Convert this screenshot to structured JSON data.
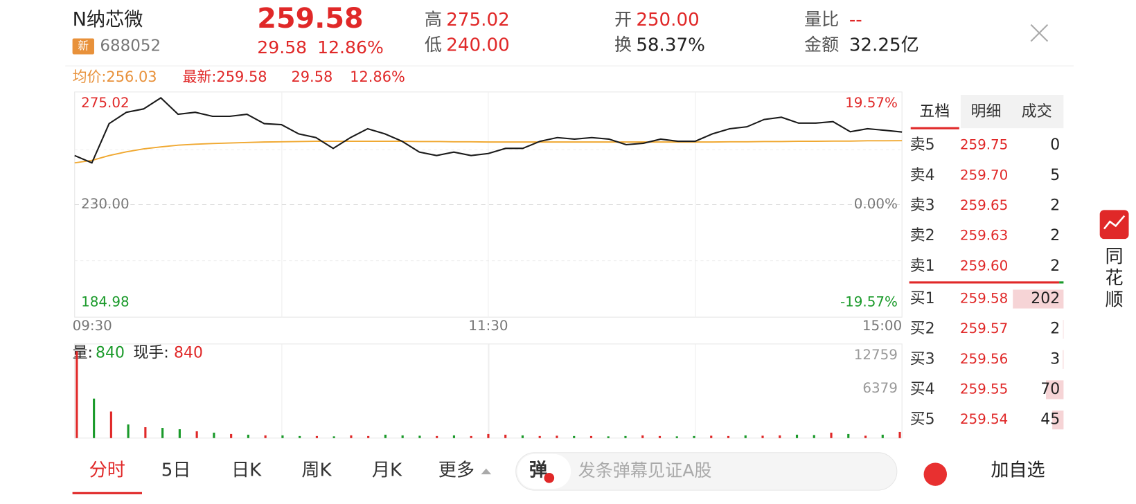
{
  "header": {
    "name": "N纳芯微",
    "tag": "新",
    "code": "688052",
    "price": "259.58",
    "change": "29.58",
    "change_pct": "12.86%",
    "high_label": "高",
    "high": "275.02",
    "low_label": "低",
    "low": "240.00",
    "open_label": "开",
    "open": "250.00",
    "turnover_label": "换",
    "turnover": "58.37%",
    "ratio_label": "量比",
    "ratio": "--",
    "amount_label": "金额",
    "amount": "32.25亿"
  },
  "info_bar": {
    "avg": "均价:256.03",
    "latest": "最新:259.58",
    "change": "29.58",
    "pct": "12.86%"
  },
  "volume_info": {
    "label": "量:",
    "value": "840",
    "hand_label": "现手:",
    "hand_value": "840"
  },
  "chart_data": [
    {
      "type": "line",
      "x": [
        0,
        5,
        10,
        15,
        20,
        25,
        30,
        35,
        40,
        45,
        50,
        55,
        60,
        65,
        70,
        75,
        80,
        85,
        90,
        95,
        100,
        105,
        110,
        115,
        120,
        125,
        130,
        135,
        140,
        145,
        150,
        155,
        160,
        165,
        170,
        175,
        180,
        185,
        190,
        195,
        200,
        205,
        210,
        215,
        220,
        225,
        230,
        235,
        240
      ],
      "xlim": [
        0,
        240
      ],
      "xticks": [
        {
          "value": 0,
          "label": "09:30"
        },
        {
          "value": 120,
          "label": "11:30"
        },
        {
          "value": 240,
          "label": "15:00"
        }
      ],
      "ylim": [
        184.98,
        275.02
      ],
      "yticks": [
        275.02,
        {
          "value": 230,
          "label": "230.00"
        },
        184.98
      ],
      "y2lim": [
        -19.57,
        19.57
      ],
      "y2ticks": [
        {
          "value": 19.57,
          "label": "19.57%"
        },
        {
          "value": 0,
          "label": "0.00%"
        },
        {
          "value": -19.57,
          "label": "-19.57%"
        }
      ],
      "grid": true,
      "series": [
        {
          "color": "#1a1a1a",
          "values": [
            250.0,
            247.0,
            263.0,
            267.6,
            269.0,
            273.5,
            266.8,
            267.6,
            266.0,
            266.0,
            266.8,
            263.0,
            262.6,
            258.8,
            257.3,
            252.9,
            257.3,
            260.9,
            258.8,
            255.8,
            251.4,
            250.0,
            251.4,
            250.0,
            250.8,
            252.9,
            252.9,
            255.8,
            257.3,
            256.7,
            257.3,
            256.7,
            254.4,
            255.0,
            256.7,
            255.8,
            255.8,
            258.8,
            260.9,
            261.7,
            264.7,
            265.6,
            263.2,
            263.2,
            263.8,
            259.7,
            260.9,
            260.3,
            259.58
          ]
        },
        {
          "color": "#f0a830",
          "values": [
            247.0,
            248.0,
            250.0,
            251.5,
            252.7,
            253.5,
            254.2,
            254.6,
            254.9,
            255.1,
            255.3,
            255.5,
            255.6,
            255.7,
            255.8,
            255.8,
            255.8,
            255.8,
            255.8,
            255.8,
            255.7,
            255.7,
            255.6,
            255.6,
            255.5,
            255.5,
            255.5,
            255.5,
            255.5,
            255.5,
            255.5,
            255.5,
            255.5,
            255.5,
            255.5,
            255.5,
            255.5,
            255.5,
            255.6,
            255.6,
            255.7,
            255.7,
            255.8,
            255.8,
            255.9,
            255.9,
            256.0,
            256.0,
            256.03
          ]
        }
      ]
    },
    {
      "type": "bar",
      "x": [
        0,
        5,
        10,
        15,
        20,
        25,
        30,
        35,
        40,
        45,
        50,
        55,
        60,
        65,
        70,
        75,
        80,
        85,
        90,
        95,
        100,
        105,
        110,
        115,
        120,
        125,
        130,
        135,
        140,
        145,
        150,
        155,
        160,
        165,
        170,
        175,
        180,
        185,
        190,
        195,
        200,
        205,
        210,
        215,
        220,
        225,
        230,
        235,
        240
      ],
      "xlim": [
        0,
        240
      ],
      "ylim": [
        0,
        12759
      ],
      "yticks": [
        12759,
        6379
      ],
      "values": [
        12759,
        5800,
        3900,
        2000,
        1600,
        1500,
        1300,
        1000,
        800,
        600,
        500,
        400,
        400,
        300,
        300,
        250,
        400,
        300,
        500,
        400,
        350,
        300,
        400,
        300,
        600,
        500,
        400,
        300,
        350,
        300,
        300,
        250,
        300,
        400,
        300,
        250,
        300,
        350,
        300,
        400,
        350,
        400,
        500,
        450,
        800,
        600,
        350,
        500,
        900
      ],
      "colors": [
        "#e02828",
        "#1a9a2a",
        "#e02828",
        "#1a9a2a",
        "#e02828",
        "#1a9a2a",
        "#1a9a2a",
        "#e02828",
        "#1a9a2a",
        "#e02828",
        "#1a9a2a",
        "#e02828",
        "#1a9a2a",
        "#1a9a2a",
        "#e02828",
        "#1a9a2a",
        "#e02828",
        "#e02828",
        "#1a9a2a",
        "#1a9a2a",
        "#1a9a2a",
        "#e02828",
        "#1a9a2a",
        "#e02828",
        "#e02828",
        "#e02828",
        "#1a9a2a",
        "#e02828",
        "#e02828",
        "#1a9a2a",
        "#e02828",
        "#1a9a2a",
        "#1a9a2a",
        "#e02828",
        "#e02828",
        "#1a9a2a",
        "#1a9a2a",
        "#e02828",
        "#e02828",
        "#1a9a2a",
        "#e02828",
        "#e02828",
        "#1a9a2a",
        "#1a9a2a",
        "#e02828",
        "#1a9a2a",
        "#e02828",
        "#1a9a2a",
        "#e02828"
      ]
    }
  ],
  "orderbook": {
    "tabs": [
      "五档",
      "明细",
      "成交"
    ],
    "sell": [
      {
        "label": "卖5",
        "price": "259.75",
        "volume": 0
      },
      {
        "label": "卖4",
        "price": "259.70",
        "volume": 5
      },
      {
        "label": "卖3",
        "price": "259.65",
        "volume": 2
      },
      {
        "label": "卖2",
        "price": "259.63",
        "volume": 2
      },
      {
        "label": "卖1",
        "price": "259.60",
        "volume": 2
      }
    ],
    "buy": [
      {
        "label": "买1",
        "price": "259.58",
        "volume": 202
      },
      {
        "label": "买2",
        "price": "259.57",
        "volume": 2
      },
      {
        "label": "买3",
        "price": "259.56",
        "volume": 3
      },
      {
        "label": "买4",
        "price": "259.55",
        "volume": 70
      },
      {
        "label": "买5",
        "price": "259.54",
        "volume": 45
      }
    ]
  },
  "bottom_tabs": [
    "分时",
    "5日",
    "日K",
    "周K",
    "月K",
    "更多"
  ],
  "danmaku": {
    "button": "弹",
    "placeholder": "发条弹幕见证A股"
  },
  "add_watch": "加自选",
  "side_app": [
    "同",
    "花",
    "顺"
  ]
}
